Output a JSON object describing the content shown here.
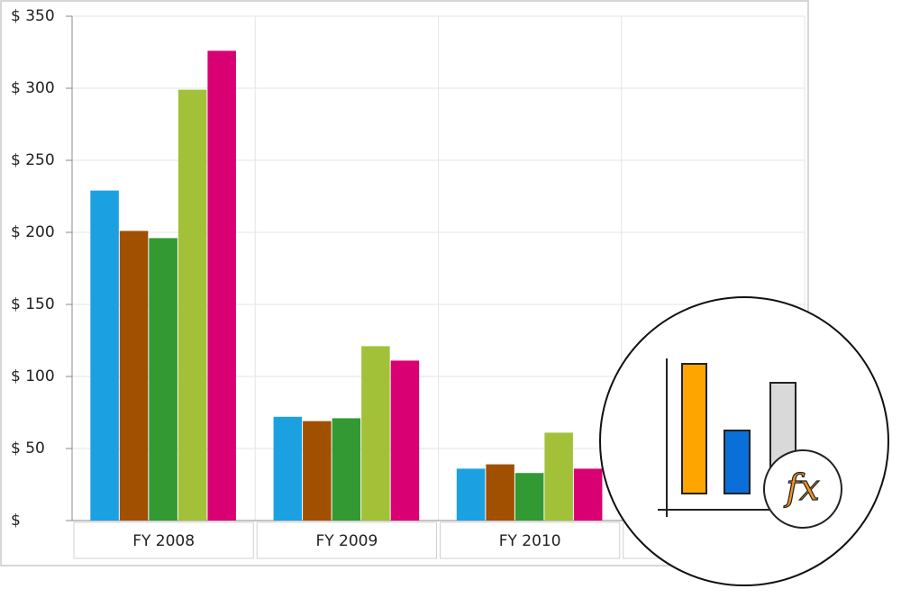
{
  "chart_data": {
    "type": "bar",
    "categories": [
      "FY 2008",
      "FY 2009",
      "FY 2010",
      null
    ],
    "series": [
      {
        "color": "#1ba1e2",
        "values": [
          229,
          72,
          36,
          null
        ]
      },
      {
        "color": "#a05000",
        "values": [
          201,
          69,
          39,
          null
        ]
      },
      {
        "color": "#339933",
        "values": [
          196,
          71,
          33,
          null
        ]
      },
      {
        "color": "#a2c139",
        "values": [
          299,
          121,
          61,
          null
        ]
      },
      {
        "color": "#d80073",
        "values": [
          326,
          111,
          36,
          null
        ]
      }
    ],
    "ylim": [
      0,
      350
    ],
    "yticks": [
      {
        "value": 0,
        "label": "$"
      },
      {
        "value": 50,
        "label": "$ 50"
      },
      {
        "value": 100,
        "label": "$ 100"
      },
      {
        "value": 150,
        "label": "$ 150"
      },
      {
        "value": 200,
        "label": "$ 200"
      },
      {
        "value": 250,
        "label": "$ 250"
      },
      {
        "value": 300,
        "label": "$ 300"
      },
      {
        "value": 350,
        "label": "$ 350"
      }
    ],
    "grid": true
  },
  "icon_text": "fx"
}
